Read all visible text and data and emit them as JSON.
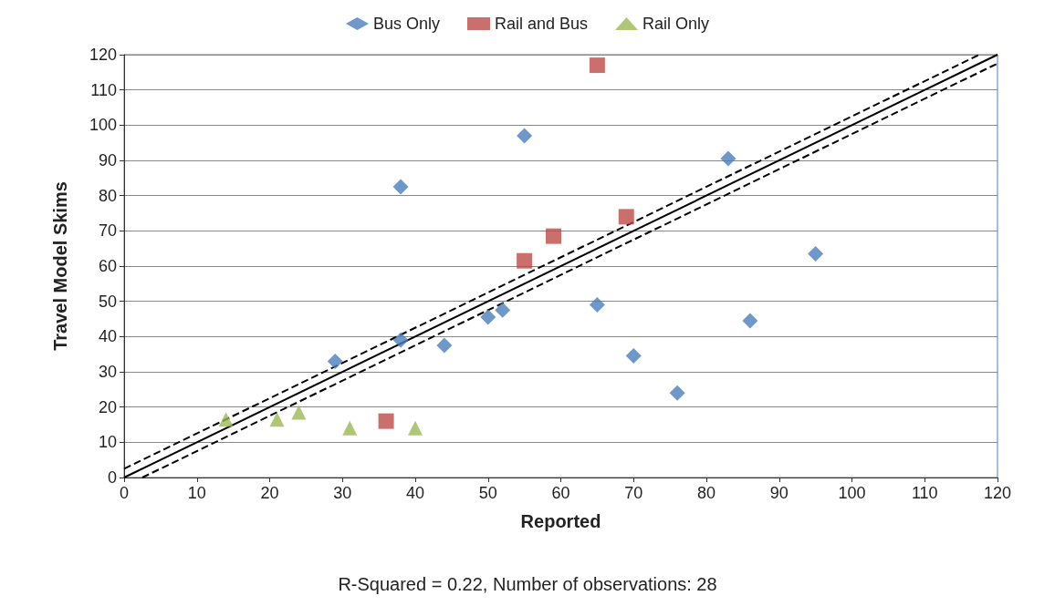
{
  "chart_data": {
    "type": "scatter",
    "xlabel": "Reported",
    "ylabel": "Travel Model Skims",
    "xlim": [
      0,
      120
    ],
    "ylim": [
      0,
      120
    ],
    "xticks": [
      0,
      10,
      20,
      30,
      40,
      50,
      60,
      70,
      80,
      90,
      100,
      110,
      120
    ],
    "yticks": [
      0,
      10,
      20,
      30,
      40,
      50,
      60,
      70,
      80,
      90,
      100,
      110,
      120
    ],
    "grid": "y",
    "legend": "top",
    "annotations": [
      "R-Squared = 0.22, Number of observations: 28"
    ],
    "series": [
      {
        "name": "Bus Only",
        "color": "#4a7ebb",
        "marker": "diamond",
        "x": [
          29,
          38,
          38,
          44,
          50,
          52,
          55,
          65,
          70,
          76,
          83,
          86,
          95
        ],
        "values": [
          33,
          82.5,
          39,
          37.5,
          45.5,
          47.5,
          97,
          49,
          34.5,
          24,
          90.5,
          44.5,
          63.5
        ]
      },
      {
        "name": "Rail and Bus",
        "color": "#be4b48",
        "marker": "square",
        "x": [
          65,
          55,
          59,
          69,
          36
        ],
        "values": [
          117,
          61.5,
          68.5,
          74,
          16
        ]
      },
      {
        "name": "Rail Only",
        "color": "#98b954",
        "marker": "triangle",
        "x": [
          14,
          21,
          24,
          31,
          40
        ],
        "values": [
          16.5,
          16.5,
          18.5,
          14,
          14
        ]
      },
      {
        "type": "line",
        "color": "#000000",
        "marker": "none",
        "line_style": "solid",
        "x": [
          0,
          120
        ],
        "values": [
          0,
          120
        ]
      },
      {
        "type": "line",
        "color": "#000000",
        "marker": "none",
        "line_style": "dashed",
        "x": [
          0,
          117.5
        ],
        "values": [
          2.5,
          120
        ]
      },
      {
        "type": "line",
        "color": "#000000",
        "marker": "none",
        "line_style": "dashed",
        "x": [
          2.5,
          120
        ],
        "values": [
          0,
          117.5
        ]
      }
    ]
  }
}
